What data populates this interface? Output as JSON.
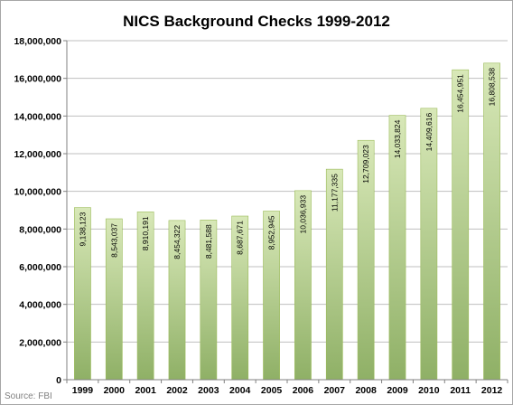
{
  "source_note": "Source: FBI",
  "colors": {
    "bar_top": "#d8e8b8",
    "bar_bottom": "#8fb066",
    "bar_stroke": "#9bbb59",
    "gridline": "#bfbfbf",
    "axis": "#808080"
  },
  "chart_data": {
    "type": "bar",
    "title": "NICS Background Checks 1999-2012",
    "xlabel": "",
    "ylabel": "",
    "categories": [
      "1999",
      "2000",
      "2001",
      "2002",
      "2003",
      "2004",
      "2005",
      "2006",
      "2007",
      "2008",
      "2009",
      "2010",
      "2011",
      "2012"
    ],
    "values": [
      9138123,
      8543037,
      8910191,
      8454322,
      8481588,
      8687671,
      8952945,
      10036933,
      11177335,
      12709023,
      14033824,
      14409616,
      16454951,
      16808538
    ],
    "value_labels": [
      "9,138,123",
      "8,543,037",
      "8,910,191",
      "8,454,322",
      "8,481,588",
      "8,687,671",
      "8,952,945",
      "10,036,933",
      "11,177,335",
      "12,709,023",
      "14,033,824",
      "14,409,616",
      "16,454,951",
      "16,808,538"
    ],
    "ylim": [
      0,
      18000000
    ],
    "yticks": [
      0,
      2000000,
      4000000,
      6000000,
      8000000,
      10000000,
      12000000,
      14000000,
      16000000,
      18000000
    ],
    "ytick_labels": [
      "0",
      "2,000,000",
      "4,000,000",
      "6,000,000",
      "8,000,000",
      "10,000,000",
      "12,000,000",
      "14,000,000",
      "16,000,000",
      "18,000,000"
    ],
    "grid": true,
    "legend": "none"
  }
}
